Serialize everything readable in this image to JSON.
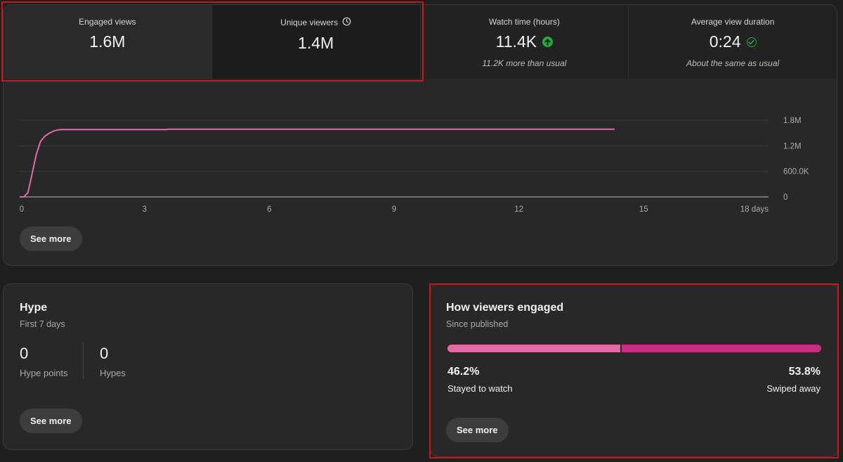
{
  "metrics": [
    {
      "label": "Engaged views",
      "value": "1.6M",
      "note": ""
    },
    {
      "label": "Unique viewers",
      "value": "1.4M",
      "note": "",
      "icon": "clock-icon"
    },
    {
      "label": "Watch time (hours)",
      "value": "11.4K",
      "note": "11.2K more than usual",
      "icon": "arrow-up-icon",
      "icon_color": "#2ba640"
    },
    {
      "label": "Average view duration",
      "value": "0:24",
      "note": "About the same as usual",
      "icon": "check-circle-icon",
      "icon_color": "#2ba640"
    }
  ],
  "chart_data": {
    "type": "line",
    "title": "",
    "xlabel": "",
    "ylabel": "",
    "x_ticks": [
      "0",
      "3",
      "6",
      "9",
      "12",
      "15",
      "18 days"
    ],
    "y_ticks": [
      "1.8M",
      "1.2M",
      "600.0K",
      "0"
    ],
    "xlim": [
      0,
      18
    ],
    "ylim": [
      0,
      1800000
    ],
    "grid": true,
    "series": [
      {
        "color": "#e26aa6",
        "x": [
          0,
          0.1,
          0.2,
          0.3,
          0.4,
          0.5,
          0.6,
          0.7,
          0.8,
          0.9,
          1.0,
          2.0,
          3.5,
          3.6,
          6,
          9,
          12,
          14.3
        ],
        "y": [
          0,
          0,
          100000,
          550000,
          1000000,
          1300000,
          1420000,
          1490000,
          1540000,
          1570000,
          1580000,
          1580000,
          1580000,
          1590000,
          1590000,
          1590000,
          1590000,
          1590000
        ]
      }
    ]
  },
  "top_card": {
    "see_more_label": "See more"
  },
  "hype": {
    "title": "Hype",
    "subtitle": "First 7 days",
    "stats": [
      {
        "value": "0",
        "label": "Hype points"
      },
      {
        "value": "0",
        "label": "Hypes"
      }
    ],
    "see_more_label": "See more"
  },
  "engagement": {
    "title": "How viewers engaged",
    "subtitle": "Since published",
    "stayed_fraction": 0.462,
    "stayed_pct": "46.2%",
    "stayed_label": "Stayed to watch",
    "swiped_pct": "53.8%",
    "swiped_label": "Swiped away",
    "colors": {
      "stayed": "#e26aa6",
      "swiped": "#cc2d83"
    },
    "see_more_label": "See more"
  }
}
